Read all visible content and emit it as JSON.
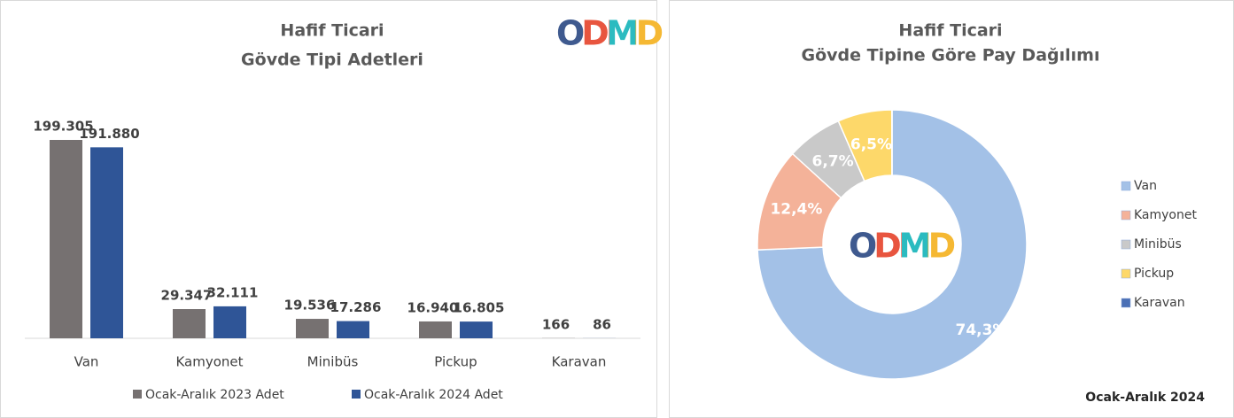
{
  "logo": "ODMD",
  "chart_data": [
    {
      "type": "bar",
      "title": [
        "Hafif Ticari",
        "Gövde Tipi Adetleri"
      ],
      "categories": [
        "Van",
        "Kamyonet",
        "Minibüs",
        "Pickup",
        "Karavan"
      ],
      "series": [
        {
          "name": "Ocak-Aralık 2023 Adet",
          "color": "#767171",
          "values": [
            199305,
            29347,
            19536,
            16940,
            166
          ],
          "value_labels": [
            "199.305",
            "29.347",
            "19.536",
            "16.940",
            "166"
          ]
        },
        {
          "name": "Ocak-Aralık 2024 Adet",
          "color": "#2f5597",
          "values": [
            191880,
            32111,
            17286,
            16805,
            86
          ],
          "value_labels": [
            "191.880",
            "32.111",
            "17.286",
            "16.805",
            "86"
          ]
        }
      ],
      "legend": "bottom"
    },
    {
      "type": "donut",
      "title": [
        "Hafif Ticari",
        "Gövde Tipine Göre Pay Dağılımı"
      ],
      "categories": [
        "Van",
        "Kamyonet",
        "Minibüs",
        "Pickup",
        "Karavan"
      ],
      "values": [
        74.3,
        12.4,
        6.7,
        6.5,
        0.03
      ],
      "value_labels": [
        "74,3%",
        "12,4%",
        "6,7%",
        "6,5%",
        null
      ],
      "colors": [
        "#a3c1e7",
        "#f4b299",
        "#c9c9c9",
        "#fdd86a",
        "#4a6fb5"
      ],
      "legend": "right",
      "footnote": "Ocak-Aralık  2024"
    }
  ]
}
